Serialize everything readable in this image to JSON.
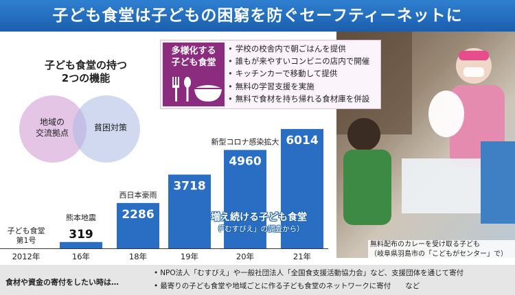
{
  "header": {
    "title": "子ども食堂は子どもの困窮を防ぐセーフティーネットに"
  },
  "functions": {
    "title_line1": "子ども食堂の持つ",
    "title_line2": "2つの機能",
    "left_line1": "地域の",
    "left_line2": "交流拠点",
    "right": "貧困対策"
  },
  "diverse": {
    "badge_line1": "多様化する",
    "badge_line2": "子ども食堂",
    "items": [
      "学校の校舎内で朝ごはんを提供",
      "誰もが来やすいコンビニの店内で開催",
      "キッチンカーで移動して提供",
      "無料の学習支援を実施",
      "無料で食材を持ち帰れる食材庫を併設"
    ]
  },
  "chart_data": {
    "type": "bar",
    "title": "増え続ける子ども食堂",
    "source": "（「むすびえ」の調査から）",
    "categories": [
      "2012年",
      "16年",
      "18年",
      "19年",
      "20年",
      "21年"
    ],
    "values": [
      null,
      319,
      2286,
      3718,
      4960,
      6014
    ],
    "ylim": [
      0,
      6500
    ],
    "annotations": [
      "子ども食堂\n第1号",
      "熊本地震",
      "西日本豪雨",
      "",
      "新型コロナ感染拡大",
      ""
    ],
    "grid": false,
    "bar_color": "#2a6ec4"
  },
  "caption": {
    "line1": "無料配布のカレーを受け取る子ども",
    "line2": "（岐阜県羽島市の「こどもがセンター」で）"
  },
  "footer": {
    "label": "食材や資金の寄付をしたい時は…",
    "items": [
      "NPO法人「むすびえ」や一般社団法人「全国食支援活動協力会」など、支援団体を通じて寄付",
      "最寄りの子ども食堂や地域ごとに作る子ども食堂のネットワークに寄付　　など"
    ]
  }
}
